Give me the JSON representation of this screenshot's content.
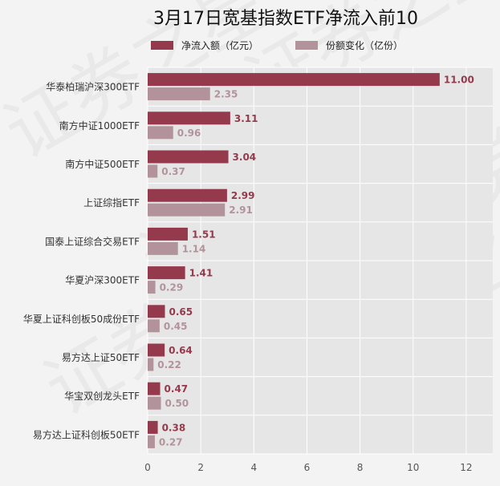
{
  "chart_data": {
    "type": "bar",
    "orientation": "horizontal",
    "title": "3月17日宽基指数ETF净流入前10",
    "categories": [
      "华泰柏瑞沪深300ETF",
      "南方中证1000ETF",
      "南方中证500ETF",
      "上证综指ETF",
      "国泰上证综合交易ETF",
      "华夏沪深300ETF",
      "华夏上证科创板50成份ETF",
      "易方达上证50ETF",
      "华宝双创龙头ETF",
      "易方达上证科创板50ETF"
    ],
    "series": [
      {
        "name": "净流入额（亿元）",
        "color": "#943a4c",
        "values": [
          11.0,
          3.11,
          3.04,
          2.99,
          1.51,
          1.41,
          0.65,
          0.64,
          0.47,
          0.38
        ],
        "labels": [
          "11.00",
          "3.11",
          "3.04",
          "2.99",
          "1.51",
          "1.41",
          "0.65",
          "0.64",
          "0.47",
          "0.38"
        ]
      },
      {
        "name": "份额变化（亿份）",
        "color": "#b3939b",
        "values": [
          2.35,
          0.96,
          0.37,
          2.91,
          1.14,
          0.29,
          0.45,
          0.22,
          0.5,
          0.27
        ],
        "labels": [
          "2.35",
          "0.96",
          "0.37",
          "2.91",
          "1.14",
          "0.29",
          "0.45",
          "0.22",
          "0.50",
          "0.27"
        ]
      }
    ],
    "xlim": [
      0,
      13
    ],
    "xticks": [
      "0",
      "2",
      "4",
      "6",
      "8",
      "10",
      "12"
    ],
    "xtick_values": [
      0,
      2,
      4,
      6,
      8,
      10,
      12
    ],
    "grid": true,
    "legend_position": "top",
    "plot_background": "#e6e6e6"
  },
  "watermark": "证券之星"
}
